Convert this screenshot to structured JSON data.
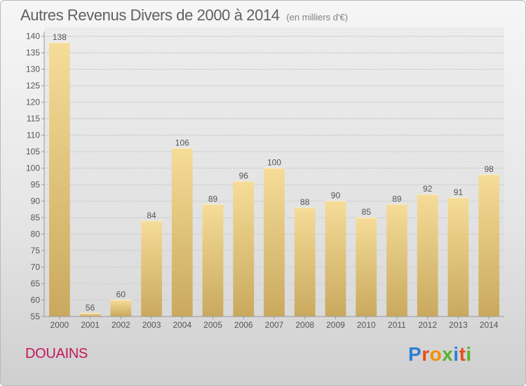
{
  "header": {
    "title": "Autres Revenus Divers de 2000 à 2014",
    "subtitle": "(en milliers d'€)"
  },
  "footer": {
    "place": "DOUAINS",
    "logo_letters": [
      "P",
      "r",
      "o",
      "x",
      "i",
      "t",
      "i"
    ]
  },
  "colors": {
    "bar_light": "#f5dc98",
    "bar_dark": "#c9a95e",
    "place": "#c2185b"
  },
  "chart_data": {
    "type": "bar",
    "title": "Autres Revenus Divers de 2000 à 2014",
    "subtitle": "(en milliers d'€)",
    "categories": [
      "2000",
      "2001",
      "2002",
      "2003",
      "2004",
      "2005",
      "2006",
      "2007",
      "2008",
      "2009",
      "2010",
      "2011",
      "2012",
      "2013",
      "2014"
    ],
    "values": [
      138,
      56,
      60,
      84,
      106,
      89,
      96,
      100,
      88,
      90,
      85,
      89,
      92,
      91,
      98
    ],
    "ylim": [
      55,
      140
    ],
    "yticks": [
      55,
      60,
      65,
      70,
      75,
      80,
      85,
      90,
      95,
      100,
      105,
      110,
      115,
      120,
      125,
      130,
      135,
      140
    ],
    "grid": true,
    "data_labels": true
  }
}
